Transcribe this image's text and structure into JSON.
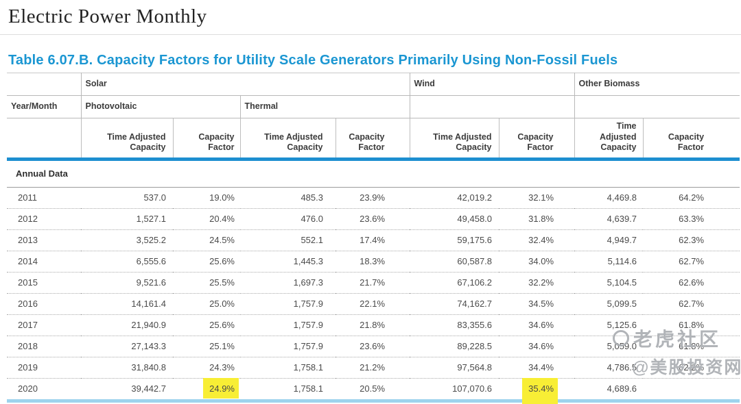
{
  "page": {
    "title": "Electric Power Monthly"
  },
  "table": {
    "title": "Table 6.07.B. Capacity Factors for Utility Scale Generators Primarily Using Non-Fossil Fuels",
    "group_headers": {
      "solar": "Solar",
      "wind": "Wind",
      "other_biomass": "Other Biomass"
    },
    "sub_headers": {
      "year_month": "Year/Month",
      "photovoltaic": "Photovoltaic",
      "thermal": "Thermal"
    },
    "column_headers": {
      "time_adjusted_capacity": "Time Adjusted Capacity",
      "capacity_factor": "Capacity Factor"
    },
    "section_label": "Annual Data",
    "accent_blue": "#1a96d2",
    "highlight_color": "#f8ee35",
    "rows": [
      {
        "year": "2011",
        "solar_pv_capacity": "537.0",
        "solar_pv_cf": "19.0%",
        "solar_thermal_capacity": "485.3",
        "solar_thermal_cf": "23.9%",
        "wind_capacity": "42,019.2",
        "wind_cf": "32.1%",
        "biomass_capacity": "4,469.8",
        "biomass_cf": "64.2%",
        "highlights": []
      },
      {
        "year": "2012",
        "solar_pv_capacity": "1,527.1",
        "solar_pv_cf": "20.4%",
        "solar_thermal_capacity": "476.0",
        "solar_thermal_cf": "23.6%",
        "wind_capacity": "49,458.0",
        "wind_cf": "31.8%",
        "biomass_capacity": "4,639.7",
        "biomass_cf": "63.3%",
        "highlights": []
      },
      {
        "year": "2013",
        "solar_pv_capacity": "3,525.2",
        "solar_pv_cf": "24.5%",
        "solar_thermal_capacity": "552.1",
        "solar_thermal_cf": "17.4%",
        "wind_capacity": "59,175.6",
        "wind_cf": "32.4%",
        "biomass_capacity": "4,949.7",
        "biomass_cf": "62.3%",
        "highlights": []
      },
      {
        "year": "2014",
        "solar_pv_capacity": "6,555.6",
        "solar_pv_cf": "25.6%",
        "solar_thermal_capacity": "1,445.3",
        "solar_thermal_cf": "18.3%",
        "wind_capacity": "60,587.8",
        "wind_cf": "34.0%",
        "biomass_capacity": "5,114.6",
        "biomass_cf": "62.7%",
        "highlights": []
      },
      {
        "year": "2015",
        "solar_pv_capacity": "9,521.6",
        "solar_pv_cf": "25.5%",
        "solar_thermal_capacity": "1,697.3",
        "solar_thermal_cf": "21.7%",
        "wind_capacity": "67,106.2",
        "wind_cf": "32.2%",
        "biomass_capacity": "5,104.5",
        "biomass_cf": "62.6%",
        "highlights": []
      },
      {
        "year": "2016",
        "solar_pv_capacity": "14,161.4",
        "solar_pv_cf": "25.0%",
        "solar_thermal_capacity": "1,757.9",
        "solar_thermal_cf": "22.1%",
        "wind_capacity": "74,162.7",
        "wind_cf": "34.5%",
        "biomass_capacity": "5,099.5",
        "biomass_cf": "62.7%",
        "highlights": []
      },
      {
        "year": "2017",
        "solar_pv_capacity": "21,940.9",
        "solar_pv_cf": "25.6%",
        "solar_thermal_capacity": "1,757.9",
        "solar_thermal_cf": "21.8%",
        "wind_capacity": "83,355.6",
        "wind_cf": "34.6%",
        "biomass_capacity": "5,125.6",
        "biomass_cf": "61.8%",
        "highlights": []
      },
      {
        "year": "2018",
        "solar_pv_capacity": "27,143.3",
        "solar_pv_cf": "25.1%",
        "solar_thermal_capacity": "1,757.9",
        "solar_thermal_cf": "23.6%",
        "wind_capacity": "89,228.5",
        "wind_cf": "34.6%",
        "biomass_capacity": "5,059.0",
        "biomass_cf": "61.8%",
        "highlights": []
      },
      {
        "year": "2019",
        "solar_pv_capacity": "31,840.8",
        "solar_pv_cf": "24.3%",
        "solar_thermal_capacity": "1,758.1",
        "solar_thermal_cf": "21.2%",
        "wind_capacity": "97,564.8",
        "wind_cf": "34.4%",
        "biomass_capacity": "4,786.5",
        "biomass_cf": "62.2%",
        "highlights": []
      },
      {
        "year": "2020",
        "solar_pv_capacity": "39,442.7",
        "solar_pv_cf": "24.9%",
        "solar_thermal_capacity": "1,758.1",
        "solar_thermal_cf": "20.5%",
        "wind_capacity": "107,070.6",
        "wind_cf": "35.4%",
        "biomass_capacity": "4,689.6",
        "biomass_cf": "",
        "highlights": [
          "solar_pv_cf",
          "wind_cf"
        ]
      }
    ]
  },
  "watermarks": [
    {
      "text": "老虎社区",
      "icon": "tiger-circle-logo"
    },
    {
      "text": "@美股投资网",
      "icon": "circle-a-logo"
    }
  ]
}
